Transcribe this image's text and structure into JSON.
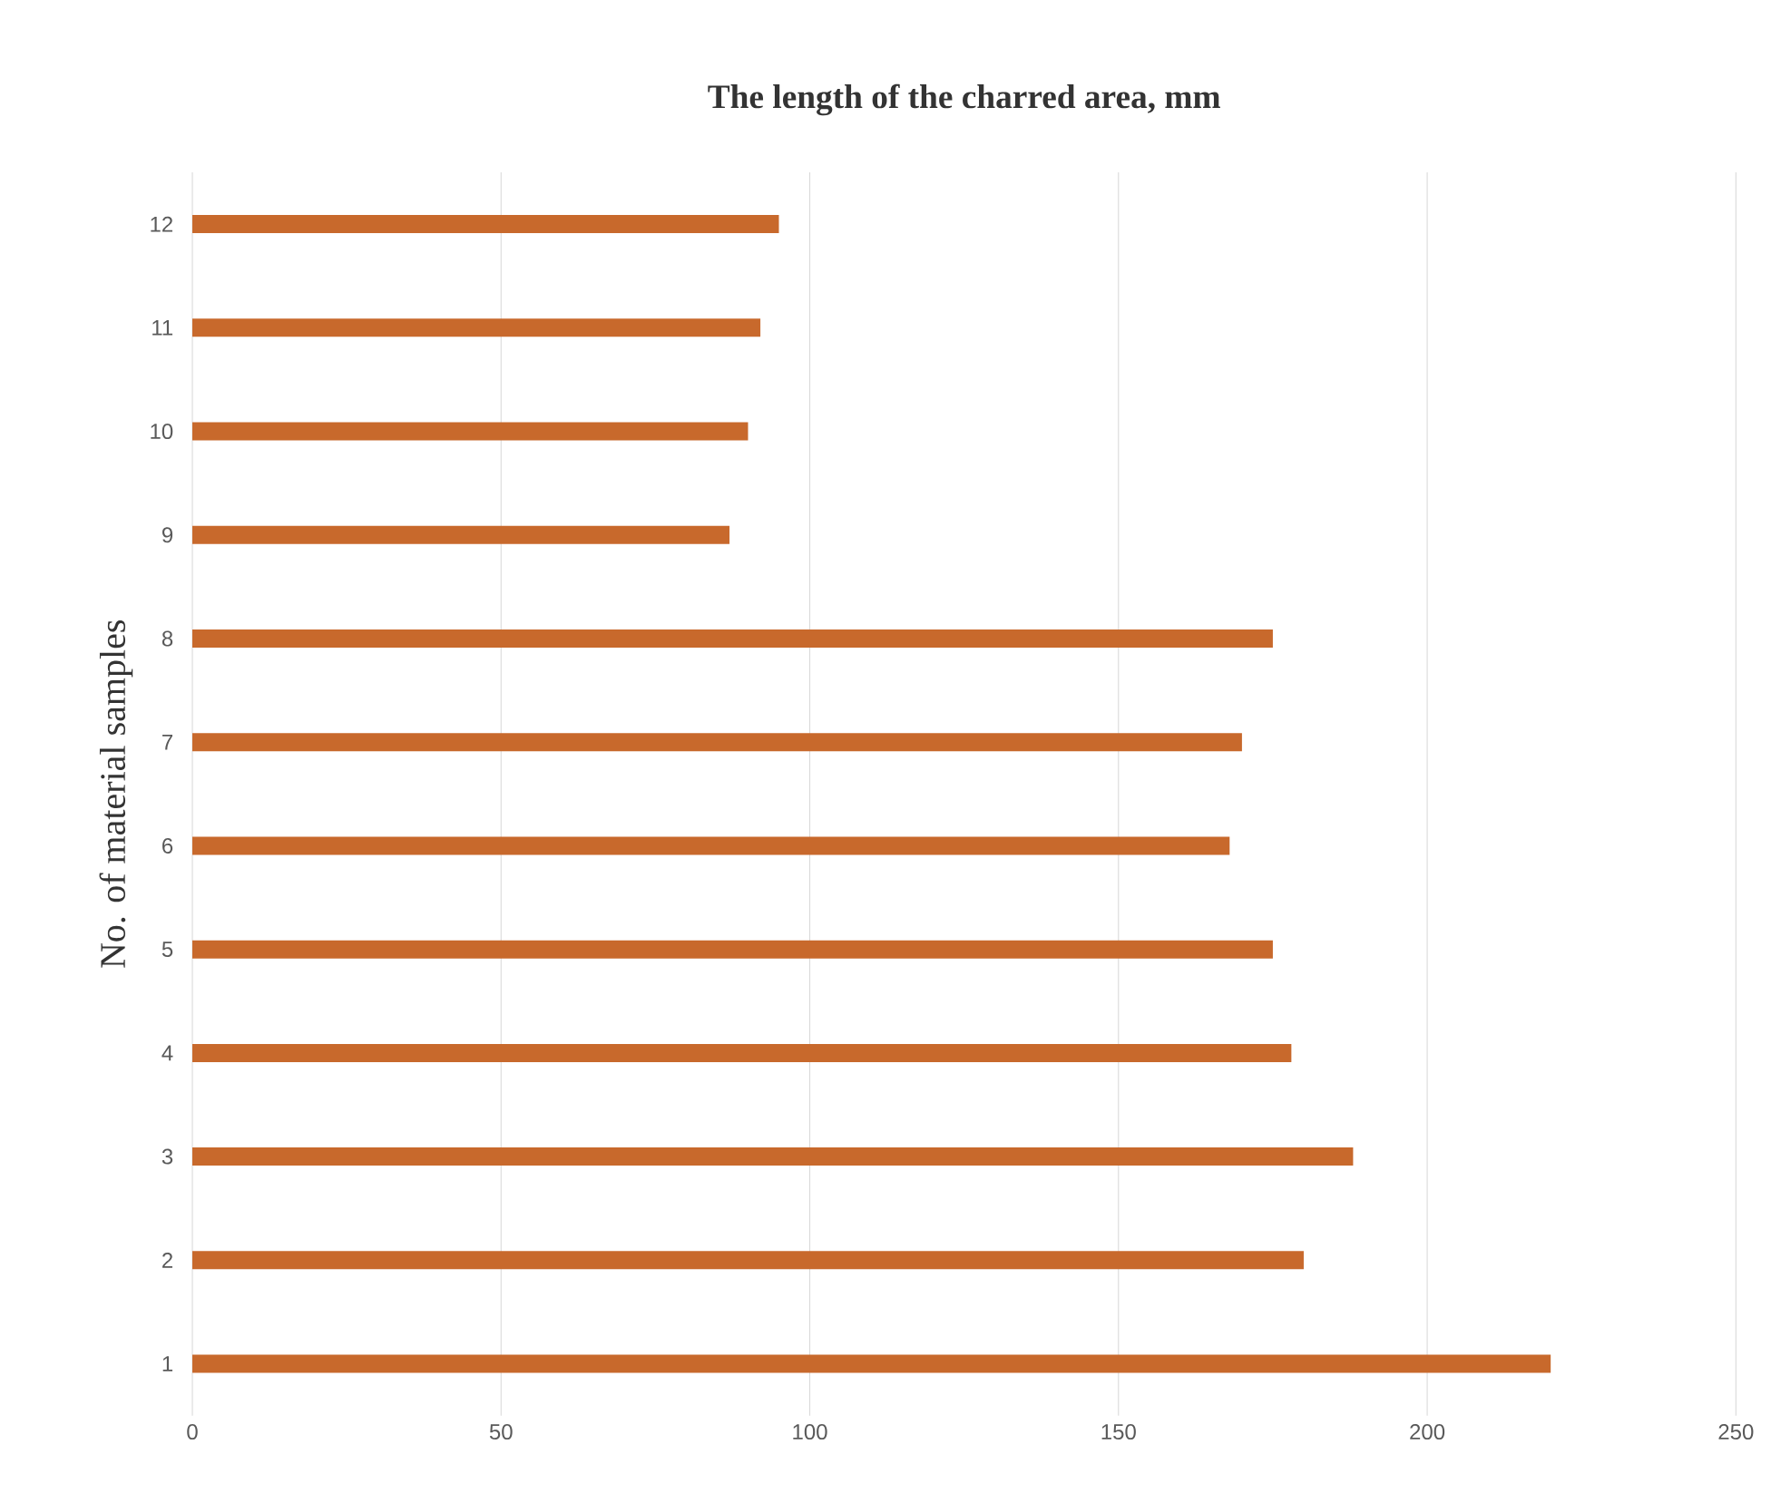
{
  "chart_data": {
    "type": "bar",
    "orientation": "horizontal",
    "title": "The length of the charred area, mm",
    "ylabel": "No. of material samples",
    "categories": [
      "12",
      "11",
      "10",
      "9",
      "8",
      "7",
      "6",
      "5",
      "4",
      "3",
      "2",
      "1"
    ],
    "values": [
      95,
      92,
      90,
      87,
      175,
      170,
      168,
      175,
      178,
      188,
      180,
      220
    ],
    "color": "#c8692c",
    "xlim": [
      0,
      250
    ],
    "xticks": [
      0,
      50,
      100,
      150,
      200,
      250
    ],
    "grid": "x"
  }
}
